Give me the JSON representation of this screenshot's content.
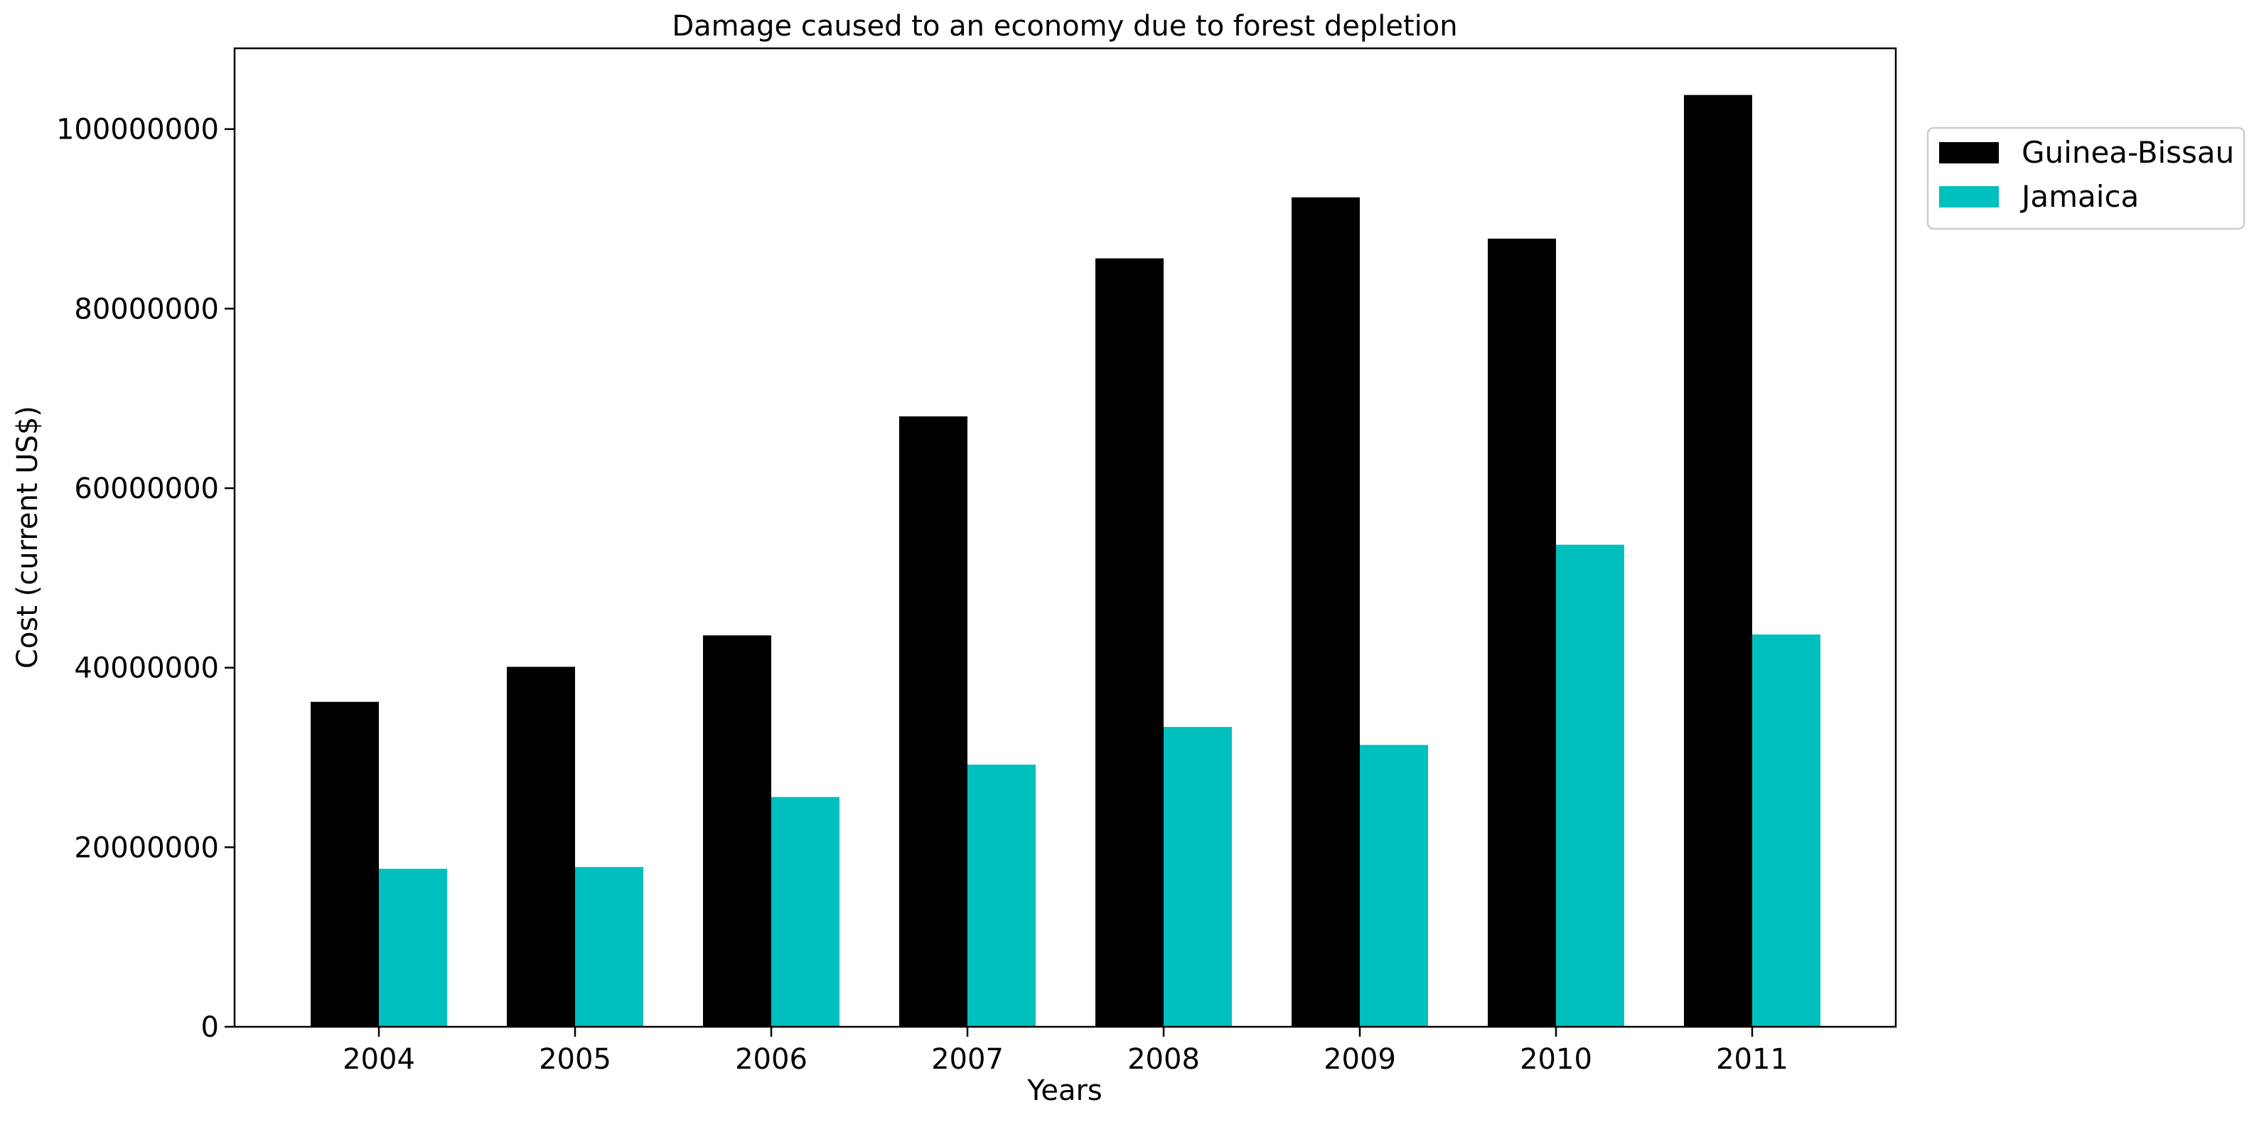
{
  "chart_data": {
    "type": "bar",
    "title": "Damage caused to an economy due to forest depletion",
    "xlabel": "Years",
    "ylabel": "Cost (current US$)",
    "categories": [
      "2004",
      "2005",
      "2006",
      "2007",
      "2008",
      "2009",
      "2010",
      "2011"
    ],
    "series": [
      {
        "name": "Guinea-Bissau",
        "color": "#000000",
        "values": [
          36200000,
          40100000,
          43600000,
          68000000,
          85600000,
          92400000,
          87800000,
          103800000
        ]
      },
      {
        "name": "Jamaica",
        "color": "#00bfbf",
        "values": [
          17600000,
          17800000,
          25600000,
          29200000,
          33400000,
          31400000,
          53700000,
          43700000
        ]
      }
    ],
    "ylim": [
      0,
      109000000
    ],
    "yticks": [
      0,
      20000000,
      40000000,
      60000000,
      80000000,
      100000000
    ],
    "ytick_labels": [
      "0",
      "20000000",
      "40000000",
      "60000000",
      "80000000",
      "100000000"
    ],
    "grid": false,
    "legend_position": "upper-right-outside"
  }
}
